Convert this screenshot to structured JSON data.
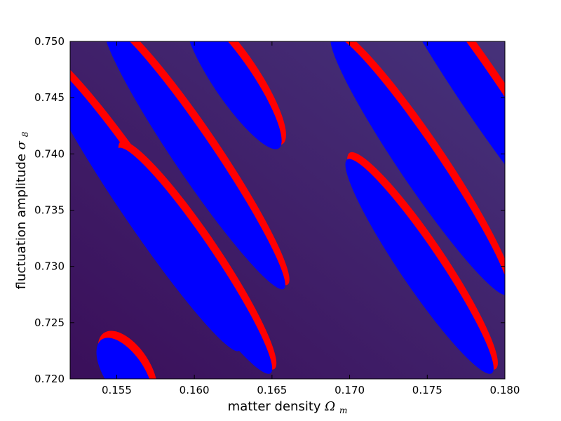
{
  "chart_data": {
    "type": "heatmap",
    "title": "",
    "xlabel": "matter density",
    "xlabel_symbol": "Ω",
    "xlabel_subscript": "m",
    "ylabel": "fluctuation amplitude",
    "ylabel_symbol": "σ",
    "ylabel_subscript": "8",
    "xlim": [
      0.152,
      0.18
    ],
    "ylim": [
      0.72,
      0.75
    ],
    "xticks": [
      0.155,
      0.16,
      0.165,
      0.17,
      0.175,
      0.18
    ],
    "xtick_labels": [
      "0.155",
      "0.160",
      "0.165",
      "0.170",
      "0.175",
      "0.180"
    ],
    "yticks": [
      0.72,
      0.725,
      0.73,
      0.735,
      0.74,
      0.745,
      0.75
    ],
    "ytick_labels": [
      "0.720",
      "0.725",
      "0.730",
      "0.735",
      "0.740",
      "0.745",
      "0.750"
    ],
    "grid": false,
    "legend": "none",
    "background": {
      "description": "smooth colormap gradient (viridis-like), darker at lower-left, lighter at upper-right",
      "color_low": "#3a0f5a",
      "color_high": "#46327a"
    },
    "region_colors": {
      "red": "#ff0000",
      "blue": "#0000ff"
    },
    "regions": [
      {
        "omega_m": 0.1565,
        "sigma8_upper": 0.7485,
        "sigma8_lower": 0.7225
      },
      {
        "omega_m": 0.16,
        "sigma8_upper": 0.7515,
        "sigma8_lower": 0.728
      },
      {
        "omega_m": 0.16,
        "sigma8_upper": 0.7405,
        "sigma8_lower": 0.7205
      },
      {
        "omega_m": 0.1785,
        "sigma8_upper": 0.7585,
        "sigma8_lower": 0.7315
      },
      {
        "omega_m": 0.1745,
        "sigma8_upper": 0.7505,
        "sigma8_lower": 0.7275
      },
      {
        "omega_m": 0.1745,
        "sigma8_upper": 0.7395,
        "sigma8_lower": 0.7205
      },
      {
        "omega_m": 0.1625,
        "sigma8_upper": 0.7525,
        "sigma8_lower": 0.7405
      },
      {
        "omega_m": 0.1555,
        "sigma8_upper": 0.7235,
        "sigma8_lower": 0.7175
      }
    ]
  }
}
